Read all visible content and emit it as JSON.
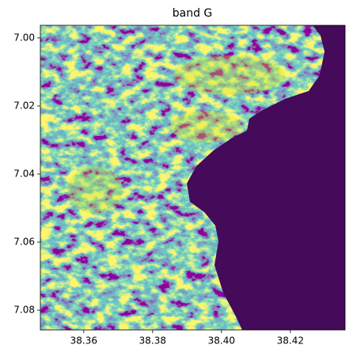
{
  "chart_data": {
    "type": "image",
    "title": "band G",
    "xlim": [
      38.3474,
      38.4359
    ],
    "xticks": [
      38.36,
      38.38,
      {
        "value": 38.4,
        "label": "38.40"
      },
      38.42
    ],
    "ylim": [
      7.0858,
      6.9963
    ],
    "yticks": [
      {
        "value": 7.0,
        "label": "7.00"
      },
      7.02,
      7.04,
      7.06,
      7.08
    ]
  }
}
